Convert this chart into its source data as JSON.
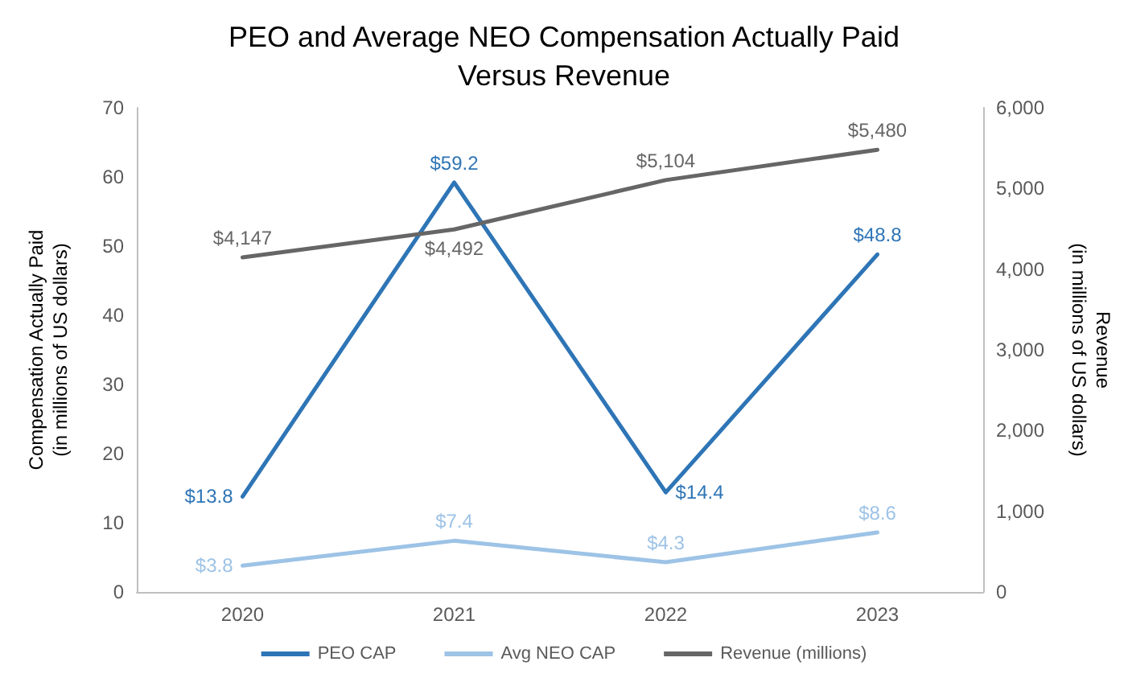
{
  "chart_data": {
    "type": "line",
    "title": "PEO and Average NEO Compensation Actually Paid\nVersus Revenue",
    "ylabel": "Compensation Actually Paid\n(in millions of US dollars)",
    "y2label": "Revenue\n(in millions of US dollars)",
    "categories": [
      "2020",
      "2021",
      "2022",
      "2023"
    ],
    "series": [
      {
        "name": "PEO CAP",
        "color": "#2e75b6",
        "values": [
          13.8,
          59.2,
          14.4,
          48.8
        ],
        "value_labels": [
          "$13.8",
          "$59.2",
          "$14.4",
          "$48.8"
        ]
      },
      {
        "name": "Avg NEO CAP",
        "color": "#9dc3e6",
        "values": [
          3.8,
          7.4,
          4.3,
          8.6
        ],
        "value_labels": [
          "$3.8",
          "$7.4",
          "$4.3",
          "$8.6"
        ]
      },
      {
        "name": "Revenue (millions)",
        "color": "#666666",
        "axis": "y2",
        "values": [
          4147,
          4492,
          5104,
          5480
        ],
        "value_labels": [
          "$4,147",
          "$4,492",
          "$5,104",
          "$5,480"
        ]
      }
    ],
    "ylim": [
      0,
      70
    ],
    "yticks": [
      0,
      10,
      20,
      30,
      40,
      50,
      60,
      70
    ],
    "y2lim": [
      0,
      6000
    ],
    "y2ticks": [
      {
        "value": 0,
        "label": "0"
      },
      {
        "value": 1000,
        "label": "1,000"
      },
      {
        "value": 2000,
        "label": "2,000"
      },
      {
        "value": 3000,
        "label": "3,000"
      },
      {
        "value": 4000,
        "label": "4,000"
      },
      {
        "value": 5000,
        "label": "5,000"
      },
      {
        "value": 6000,
        "label": "6,000"
      }
    ],
    "legend": "bottom",
    "grid": false,
    "marker": "none",
    "line_style": "solid"
  }
}
